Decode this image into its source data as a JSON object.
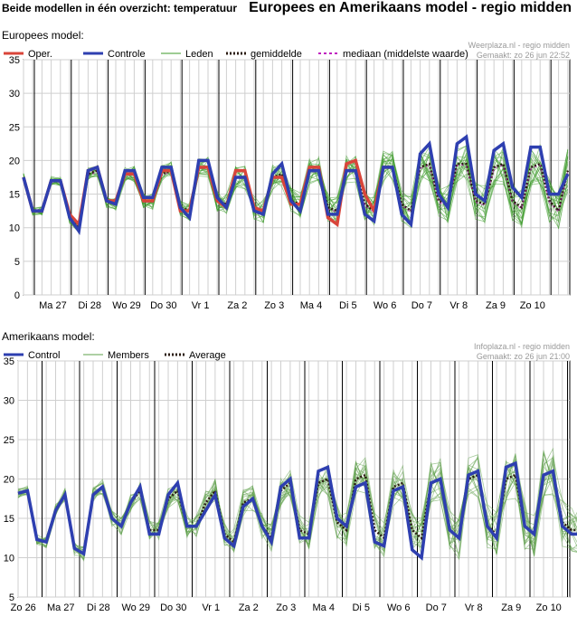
{
  "header": {
    "left_title": "Beide modellen in één overzicht: temperatuur",
    "right_title": "Europees en Amerikaans model - regio midden"
  },
  "colors": {
    "oper": "#d9453a",
    "control": "#2e3fb0",
    "member_eu": "#3c9a2a",
    "member_us": "#5ea14a",
    "average": "#2a1a10",
    "median": "#c020c0",
    "grid": "#cfcfcf",
    "day_line": "#000000"
  },
  "chart_data": [
    {
      "type": "line",
      "section_label": "Europees model:",
      "source_line1": "Weerplaza.nl - regio midden",
      "source_line2": "Gemaakt: zo 26 jun 22:52",
      "legend": [
        {
          "key": "oper",
          "label": "Oper."
        },
        {
          "key": "control",
          "label": "Controle"
        },
        {
          "key": "member",
          "label": "Leden"
        },
        {
          "key": "average",
          "label": "gemiddelde"
        },
        {
          "key": "median",
          "label": "mediaan (middelste waarde)"
        }
      ],
      "x_labels": [
        "Ma 27",
        "Di 28",
        "Wo 29",
        "Do 30",
        "Vr 1",
        "Za 2",
        "Zo 3",
        "Ma 4",
        "Di 5",
        "Wo 6",
        "Do 7",
        "Vr 8",
        "Za 9",
        "Zo 10"
      ],
      "ylim": [
        0,
        35
      ],
      "yticks": [
        0,
        5,
        10,
        15,
        20,
        25,
        30,
        35
      ],
      "x_step_hours": 6,
      "series": {
        "oper": [
          17.5,
          12.5,
          12.5,
          17.0,
          17.0,
          12.0,
          10.5,
          18.5,
          19.0,
          14.0,
          14.0,
          18.0,
          18.0,
          14.0,
          14.0,
          18.5,
          18.5,
          12.5,
          12.5,
          19.0,
          19.0,
          14.0,
          13.0,
          18.5,
          18.5,
          13.0,
          12.5,
          17.5,
          17.5,
          13.5,
          13.5,
          19.0,
          19.0,
          11.5,
          10.5,
          19.5,
          20.0,
          15.0,
          12.5,
          19.0,
          19.0
        ],
        "control": [
          17.5,
          12.5,
          12.5,
          17.0,
          17.0,
          11.5,
          9.5,
          18.5,
          19.0,
          14.0,
          13.5,
          18.5,
          18.5,
          14.5,
          14.5,
          19.0,
          19.0,
          13.0,
          11.5,
          20.0,
          20.0,
          14.5,
          13.0,
          17.5,
          17.5,
          12.5,
          12.0,
          18.0,
          19.5,
          14.0,
          12.5,
          18.5,
          18.5,
          12.0,
          12.0,
          18.5,
          18.5,
          12.0,
          11.0,
          19.0,
          19.0,
          12.0,
          10.5,
          21.0,
          22.5,
          15.0,
          13.0,
          22.5,
          23.5,
          15.0,
          14.0,
          21.5,
          22.5,
          16.0,
          14.5,
          22.0,
          22.0,
          15.0,
          15.0,
          18.0
        ],
        "average": [
          17.5,
          12.5,
          12.5,
          17.0,
          17.0,
          11.5,
          10.0,
          18.0,
          18.5,
          14.0,
          13.5,
          18.0,
          18.0,
          14.0,
          14.0,
          18.0,
          18.5,
          13.0,
          12.5,
          19.0,
          19.0,
          14.0,
          13.5,
          17.5,
          17.5,
          13.0,
          12.5,
          17.5,
          18.0,
          14.0,
          13.5,
          18.5,
          18.5,
          13.0,
          12.5,
          18.5,
          18.5,
          13.5,
          12.5,
          19.0,
          19.0,
          13.5,
          12.5,
          19.0,
          19.5,
          14.0,
          13.5,
          19.5,
          19.5,
          14.0,
          13.5,
          19.0,
          19.5,
          14.0,
          13.0,
          19.0,
          19.5,
          14.0,
          12.5,
          18.5
        ]
      }
    },
    {
      "type": "line",
      "section_label": "Amerikaans model:",
      "source_line1": "Infoplaza.nl - regio midden",
      "source_line2": "Gemaakt: zo 26 jun 21:00",
      "legend": [
        {
          "key": "control",
          "label": "Control"
        },
        {
          "key": "member",
          "label": "Members"
        },
        {
          "key": "average",
          "label": "Average"
        }
      ],
      "x_labels": [
        "Zo 26",
        "Ma 27",
        "Di 28",
        "Wo 29",
        "Do 30",
        "Vr 1",
        "Za 2",
        "Zo 3",
        "Ma 4",
        "Di 5",
        "Wo 6",
        "Do 7",
        "Vr 8",
        "Za 9",
        "Zo 10"
      ],
      "ylim": [
        5,
        35
      ],
      "yticks": [
        5,
        10,
        15,
        20,
        25,
        30,
        35
      ],
      "x_step_hours": 6,
      "series": {
        "control": [
          18.2,
          18.5,
          12.3,
          12.0,
          16.0,
          18.0,
          11.2,
          10.5,
          18.0,
          19.0,
          15.0,
          14.0,
          17.0,
          19.0,
          13.0,
          13.0,
          18.0,
          19.5,
          14.0,
          14.0,
          16.0,
          18.0,
          12.5,
          11.5,
          16.5,
          17.5,
          14.0,
          12.0,
          19.0,
          20.0,
          12.5,
          12.5,
          21.0,
          21.5,
          15.0,
          14.0,
          19.0,
          19.5,
          12.0,
          11.5,
          18.5,
          19.0,
          11.0,
          10.0,
          19.5,
          20.0,
          13.5,
          12.5,
          20.5,
          21.0,
          14.0,
          12.5,
          21.5,
          22.0,
          14.0,
          13.0,
          20.5,
          21.0,
          14.0,
          13.0,
          13.0
        ],
        "average": [
          18.2,
          18.5,
          12.3,
          12.0,
          16.0,
          18.0,
          11.2,
          10.5,
          18.0,
          19.0,
          15.0,
          14.0,
          17.0,
          18.5,
          13.5,
          13.5,
          17.5,
          18.5,
          14.0,
          14.0,
          17.0,
          18.5,
          13.0,
          12.0,
          17.0,
          17.5,
          14.0,
          12.5,
          18.5,
          19.5,
          13.5,
          13.0,
          19.5,
          20.0,
          14.5,
          13.5,
          20.0,
          20.5,
          13.5,
          12.5,
          19.0,
          19.5,
          13.5,
          12.5,
          19.5,
          20.0,
          13.5,
          12.5,
          20.0,
          20.5,
          14.0,
          13.0,
          20.0,
          20.5,
          14.0,
          13.0,
          20.5,
          21.0,
          14.5,
          13.5,
          13.5
        ]
      }
    }
  ]
}
